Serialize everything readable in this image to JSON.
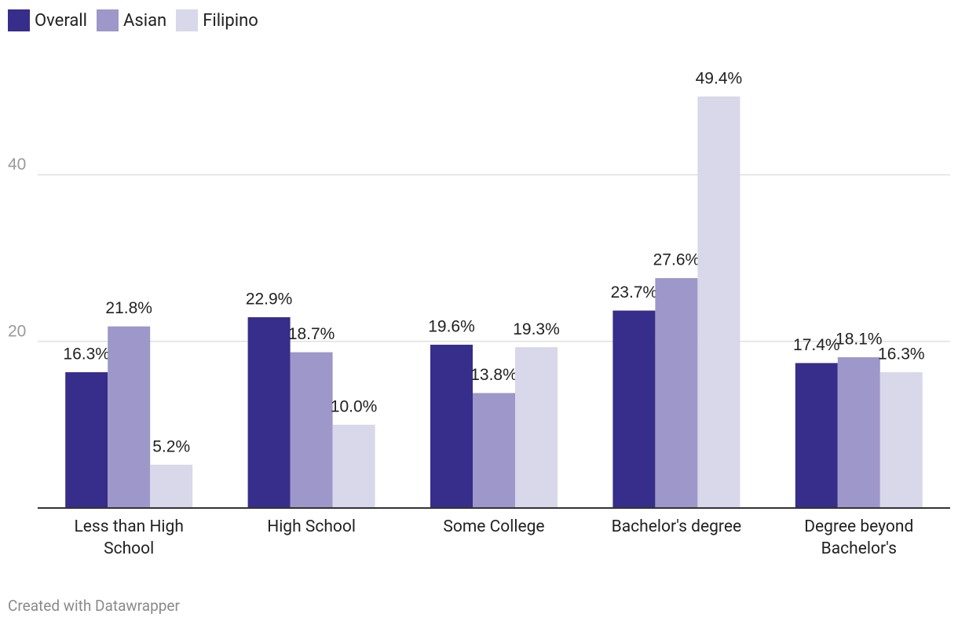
{
  "chart_data": {
    "type": "bar",
    "categories": [
      "Less than High School",
      "High School",
      "Some College",
      "Bachelor's degree",
      "Degree beyond Bachelor's"
    ],
    "series": [
      {
        "name": "Overall",
        "color": "#372d8a",
        "values": [
          16.3,
          22.9,
          19.6,
          23.7,
          17.4
        ],
        "value_labels": [
          "16.3%",
          "22.9%",
          "19.6%",
          "23.7%",
          "17.4%"
        ]
      },
      {
        "name": "Asian",
        "color": "#9e97c9",
        "values": [
          21.8,
          18.7,
          13.8,
          27.6,
          18.1
        ],
        "value_labels": [
          "21.8%",
          "18.7%",
          "13.8%",
          "27.6%",
          "18.1%"
        ]
      },
      {
        "name": "Filipino",
        "color": "#d9d7ea",
        "values": [
          5.2,
          10.0,
          19.3,
          49.4,
          16.3
        ],
        "value_labels": [
          "5.2%",
          "10.0%",
          "19.3%",
          "49.4%",
          "16.3%"
        ]
      }
    ],
    "ylim": [
      0,
      50
    ],
    "yticks": [
      20,
      40
    ],
    "grid": true,
    "footer": "Created with Datawrapper"
  }
}
